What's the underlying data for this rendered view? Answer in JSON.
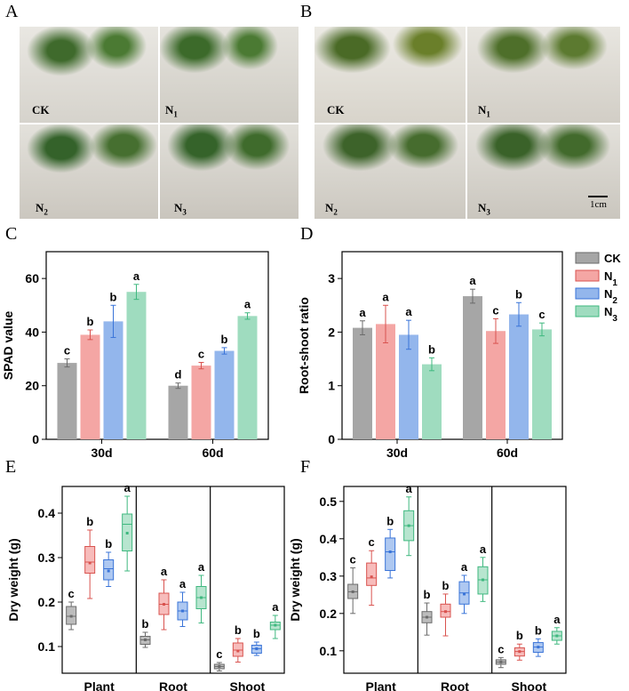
{
  "panels": {
    "A": "A",
    "B": "B",
    "C": "C",
    "D": "D",
    "E": "E",
    "F": "F"
  },
  "photos": {
    "A": {
      "labels": {
        "ck": "CK",
        "n1": "N",
        "n1sub": "1",
        "n2": "N",
        "n2sub": "2",
        "n3": "N",
        "n3sub": "3"
      }
    },
    "B": {
      "labels": {
        "ck": "CK",
        "n1": "N",
        "n1sub": "1",
        "n2": "N",
        "n2sub": "2",
        "n3": "N",
        "n3sub": "3"
      },
      "scalebar": "1cm"
    }
  },
  "colors": {
    "CK": "#a6a6a6",
    "N1": "#f4a6a4",
    "N2": "#93b6ec",
    "N3": "#9fdcbf",
    "CK_edge": "#6b6b6b",
    "N1_edge": "#d9534f",
    "N2_edge": "#3a74d8",
    "N3_edge": "#3fb87f"
  },
  "legend": [
    {
      "name": "CK",
      "base": "CK",
      "sub": ""
    },
    {
      "name": "N1",
      "base": "N",
      "sub": "1"
    },
    {
      "name": "N2",
      "base": "N",
      "sub": "2"
    },
    {
      "name": "N3",
      "base": "N",
      "sub": "3"
    }
  ],
  "chart_data": [
    {
      "id": "C",
      "type": "bar",
      "ylabel": "SPAD value",
      "ylim": [
        0,
        70
      ],
      "yticks": [
        0,
        20,
        40,
        60
      ],
      "categories": [
        "30d",
        "60d"
      ],
      "series": [
        {
          "name": "CK",
          "values": [
            28.5,
            20.0
          ],
          "errors": [
            1.5,
            1.0
          ],
          "letters": [
            "c",
            "d"
          ]
        },
        {
          "name": "N1",
          "values": [
            39.0,
            27.5
          ],
          "errors": [
            1.8,
            1.2
          ],
          "letters": [
            "b",
            "c"
          ]
        },
        {
          "name": "N2",
          "values": [
            44.0,
            33.0
          ],
          "errors": [
            6.0,
            1.2
          ],
          "letters": [
            "b",
            "b"
          ]
        },
        {
          "name": "N3",
          "values": [
            55.0,
            46.0
          ],
          "errors": [
            2.8,
            1.2
          ],
          "letters": [
            "a",
            "a"
          ]
        }
      ]
    },
    {
      "id": "D",
      "type": "bar",
      "ylabel": "Root-shoot ratio",
      "ylim": [
        0,
        3.5
      ],
      "yticks": [
        0,
        1,
        2,
        3
      ],
      "categories": [
        "30d",
        "60d"
      ],
      "series": [
        {
          "name": "CK",
          "values": [
            2.08,
            2.67
          ],
          "errors": [
            0.13,
            0.13
          ],
          "letters": [
            "a",
            "a"
          ]
        },
        {
          "name": "N1",
          "values": [
            2.15,
            2.02
          ],
          "errors": [
            0.35,
            0.23
          ],
          "letters": [
            "a",
            "c"
          ]
        },
        {
          "name": "N2",
          "values": [
            1.95,
            2.33
          ],
          "errors": [
            0.27,
            0.22
          ],
          "letters": [
            "a",
            "b"
          ]
        },
        {
          "name": "N3",
          "values": [
            1.4,
            2.05
          ],
          "errors": [
            0.12,
            0.12
          ],
          "letters": [
            "b",
            "c"
          ]
        }
      ]
    },
    {
      "id": "E",
      "type": "box",
      "ylabel": "Dry weight (g)",
      "ylim": [
        0.04,
        0.46
      ],
      "yticks": [
        0.1,
        0.2,
        0.3,
        0.4
      ],
      "categories": [
        "Plant",
        "Root",
        "Shoot"
      ],
      "series": [
        {
          "name": "CK",
          "boxes": [
            {
              "min": 0.138,
              "q1": 0.15,
              "median": 0.168,
              "q3": 0.19,
              "max": 0.2,
              "mean": 0.168,
              "letter": "c"
            },
            {
              "min": 0.098,
              "q1": 0.105,
              "median": 0.115,
              "q3": 0.123,
              "max": 0.132,
              "mean": 0.115,
              "letter": "b"
            },
            {
              "min": 0.045,
              "q1": 0.05,
              "median": 0.055,
              "q3": 0.06,
              "max": 0.064,
              "mean": 0.055,
              "letter": "c"
            }
          ]
        },
        {
          "name": "N1",
          "boxes": [
            {
              "min": 0.208,
              "q1": 0.265,
              "median": 0.29,
              "q3": 0.325,
              "max": 0.362,
              "mean": 0.288,
              "letter": "b"
            },
            {
              "min": 0.138,
              "q1": 0.172,
              "median": 0.195,
              "q3": 0.22,
              "max": 0.25,
              "mean": 0.195,
              "letter": "a"
            },
            {
              "min": 0.065,
              "q1": 0.078,
              "median": 0.092,
              "q3": 0.108,
              "max": 0.118,
              "mean": 0.09,
              "letter": "b"
            }
          ]
        },
        {
          "name": "N2",
          "boxes": [
            {
              "min": 0.235,
              "q1": 0.25,
              "median": 0.275,
              "q3": 0.295,
              "max": 0.312,
              "mean": 0.27,
              "letter": "b"
            },
            {
              "min": 0.145,
              "q1": 0.16,
              "median": 0.18,
              "q3": 0.2,
              "max": 0.222,
              "mean": 0.18,
              "letter": "a"
            },
            {
              "min": 0.08,
              "q1": 0.085,
              "median": 0.095,
              "q3": 0.103,
              "max": 0.11,
              "mean": 0.095,
              "letter": "b"
            }
          ]
        },
        {
          "name": "N3",
          "boxes": [
            {
              "min": 0.27,
              "q1": 0.315,
              "median": 0.375,
              "q3": 0.398,
              "max": 0.438,
              "mean": 0.355,
              "letter": "a"
            },
            {
              "min": 0.153,
              "q1": 0.185,
              "median": 0.21,
              "q3": 0.235,
              "max": 0.26,
              "mean": 0.21,
              "letter": "a"
            },
            {
              "min": 0.118,
              "q1": 0.138,
              "median": 0.148,
              "q3": 0.155,
              "max": 0.17,
              "mean": 0.148,
              "letter": "a"
            }
          ]
        }
      ]
    },
    {
      "id": "F",
      "type": "box",
      "ylabel": "Dry weight (g)",
      "ylim": [
        0.04,
        0.54
      ],
      "yticks": [
        0.1,
        0.2,
        0.3,
        0.4,
        0.5
      ],
      "categories": [
        "Plant",
        "Root",
        "Shoot"
      ],
      "series": [
        {
          "name": "CK",
          "boxes": [
            {
              "min": 0.2,
              "q1": 0.24,
              "median": 0.258,
              "q3": 0.278,
              "max": 0.322,
              "mean": 0.258,
              "letter": "c"
            },
            {
              "min": 0.142,
              "q1": 0.175,
              "median": 0.19,
              "q3": 0.205,
              "max": 0.228,
              "mean": 0.19,
              "letter": "b"
            },
            {
              "min": 0.055,
              "q1": 0.064,
              "median": 0.07,
              "q3": 0.076,
              "max": 0.082,
              "mean": 0.07,
              "letter": "c"
            }
          ]
        },
        {
          "name": "N1",
          "boxes": [
            {
              "min": 0.222,
              "q1": 0.275,
              "median": 0.295,
              "q3": 0.335,
              "max": 0.368,
              "mean": 0.298,
              "letter": "c"
            },
            {
              "min": 0.14,
              "q1": 0.19,
              "median": 0.205,
              "q3": 0.225,
              "max": 0.252,
              "mean": 0.205,
              "letter": "b"
            },
            {
              "min": 0.075,
              "q1": 0.086,
              "median": 0.098,
              "q3": 0.108,
              "max": 0.118,
              "mean": 0.098,
              "letter": "b"
            }
          ]
        },
        {
          "name": "N2",
          "boxes": [
            {
              "min": 0.295,
              "q1": 0.315,
              "median": 0.365,
              "q3": 0.402,
              "max": 0.425,
              "mean": 0.365,
              "letter": "b"
            },
            {
              "min": 0.2,
              "q1": 0.225,
              "median": 0.255,
              "q3": 0.285,
              "max": 0.302,
              "mean": 0.252,
              "letter": "a"
            },
            {
              "min": 0.085,
              "q1": 0.096,
              "median": 0.11,
              "q3": 0.122,
              "max": 0.132,
              "mean": 0.11,
              "letter": "b"
            }
          ]
        },
        {
          "name": "N3",
          "boxes": [
            {
              "min": 0.355,
              "q1": 0.395,
              "median": 0.435,
              "q3": 0.475,
              "max": 0.512,
              "mean": 0.435,
              "letter": "a"
            },
            {
              "min": 0.232,
              "q1": 0.252,
              "median": 0.29,
              "q3": 0.325,
              "max": 0.35,
              "mean": 0.29,
              "letter": "a"
            },
            {
              "min": 0.118,
              "q1": 0.128,
              "median": 0.14,
              "q3": 0.152,
              "max": 0.162,
              "mean": 0.14,
              "letter": "a"
            }
          ]
        }
      ]
    }
  ]
}
